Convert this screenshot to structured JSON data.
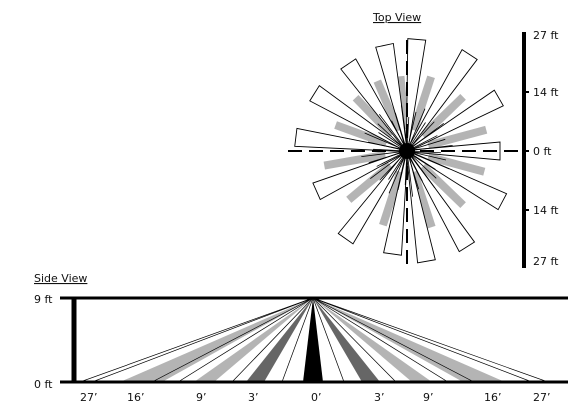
{
  "colors": {
    "ink": "#000000",
    "gray": "#b4b4b4",
    "mid_gray": "#666666",
    "dark_gray": "#333333"
  },
  "top_view": {
    "title": "Top View",
    "scale_labels": [
      "27 ft",
      "14 ft",
      "0 ft",
      "14 ft",
      "27 ft"
    ]
  },
  "side_view": {
    "title": "Side View",
    "height_labels": [
      "9 ft",
      "0 ft"
    ],
    "distance_labels": [
      "27’",
      "16’",
      "9’",
      "3’",
      "0’",
      "3’",
      "9’",
      "16’",
      "27’"
    ]
  }
}
